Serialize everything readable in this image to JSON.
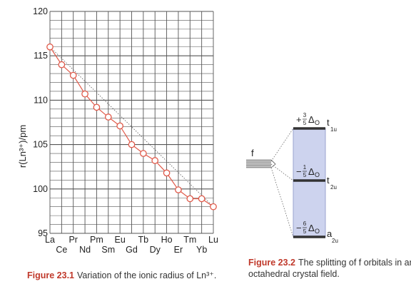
{
  "chart_data": [
    {
      "type": "line",
      "title": "",
      "ylabel": "r(Ln³⁺)/pm",
      "xlabel": "",
      "ylim": [
        95,
        120
      ],
      "yticks": [
        95,
        100,
        105,
        110,
        115,
        120
      ],
      "grid": true,
      "categories": [
        "La",
        "Ce",
        "Pr",
        "Nd",
        "Pm",
        "Sm",
        "Eu",
        "Gd",
        "Tb",
        "Dy",
        "Ho",
        "Er",
        "Tm",
        "Yb",
        "Lu"
      ],
      "series": [
        {
          "values": [
            116.0,
            114.0,
            112.8,
            110.7,
            109.2,
            108.1,
            107.1,
            105.0,
            104.0,
            103.2,
            101.8,
            99.9,
            98.9,
            98.9,
            98.0
          ]
        }
      ],
      "trend_line": {
        "from": [
          116.0
        ],
        "to": [
          98.0
        ],
        "style": "dotted"
      },
      "colors": {
        "series": "#e05a4a",
        "marker_fill": "#ffffff",
        "grid": "#555555",
        "trend": "#666666"
      }
    },
    {
      "type": "diagram",
      "left_label": "f",
      "levels": [
        {
          "energy": "+3/5 Δo",
          "sign": "+",
          "num": "3",
          "den": "5",
          "symbol": "Δ",
          "sub": "O",
          "term": "t",
          "term_sub": "1u"
        },
        {
          "energy": "−1/5 Δo",
          "sign": "−",
          "num": "1",
          "den": "5",
          "symbol": "Δ",
          "sub": "O",
          "term": "t",
          "term_sub": "2u"
        },
        {
          "energy": "−6/5 Δo",
          "sign": "−",
          "num": "6",
          "den": "5",
          "symbol": "Δ",
          "sub": "O",
          "term": "a",
          "term_sub": "2u"
        }
      ],
      "colors": {
        "band": "#cdd3ee",
        "band_edge": "#9aa3cf",
        "level": "#333333"
      }
    }
  ],
  "captions": {
    "fig1": {
      "number": "Figure 23.1",
      "text": "Variation of the ionic radius of Ln³⁺."
    },
    "fig2": {
      "number": "Figure 23.2",
      "text_line1": "The splitting of f orbitals in an",
      "text_line2": "octahedral crystal field."
    }
  }
}
